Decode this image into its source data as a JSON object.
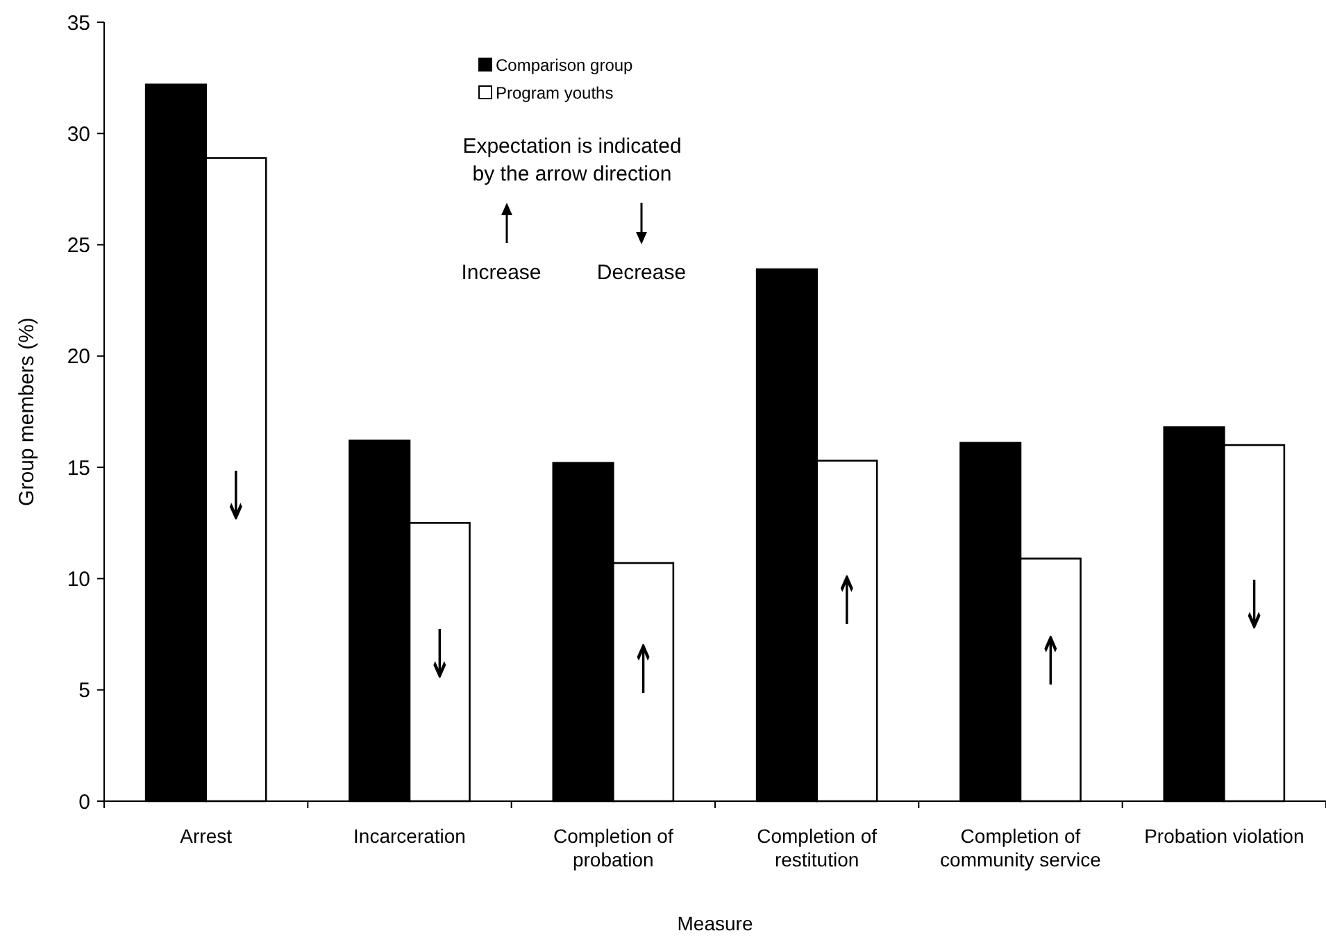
{
  "chart_data": {
    "type": "bar",
    "xlabel": "Measure",
    "ylabel": "Group members (%)",
    "categories": [
      "Arrest",
      "Incarceration",
      "Completion of probation",
      "Completion of restitution",
      "Completion of community service",
      "Probation violation"
    ],
    "series": [
      {
        "name": "Comparison group",
        "color": "#000000",
        "values": [
          32.2,
          16.2,
          15.2,
          23.9,
          16.1,
          16.8
        ]
      },
      {
        "name": "Program youths",
        "color": "#ffffff",
        "values": [
          28.9,
          12.5,
          10.7,
          15.3,
          10.9,
          16.0
        ]
      }
    ],
    "ylim": [
      0,
      35
    ],
    "yticks": [
      0,
      5,
      10,
      15,
      20,
      25,
      30,
      35
    ],
    "grid": false,
    "legend": "top",
    "annotations": [
      "Expectation is indicated by the arrow direction",
      "Increase",
      "Decrease",
      {
        "text": "↓",
        "x": "Arrest",
        "y": 13.7
      },
      {
        "text": "↓",
        "x": "Incarceration",
        "y": 6.6
      },
      {
        "text": "↑",
        "x": "Completion of probation",
        "y": 5.9
      },
      {
        "text": "↑",
        "x": "Completion of restitution",
        "y": 9
      },
      {
        "text": "↑",
        "x": "Completion of community service",
        "y": 6.3
      },
      {
        "text": "↓",
        "x": "Probation violation",
        "y": 8.8
      }
    ]
  }
}
